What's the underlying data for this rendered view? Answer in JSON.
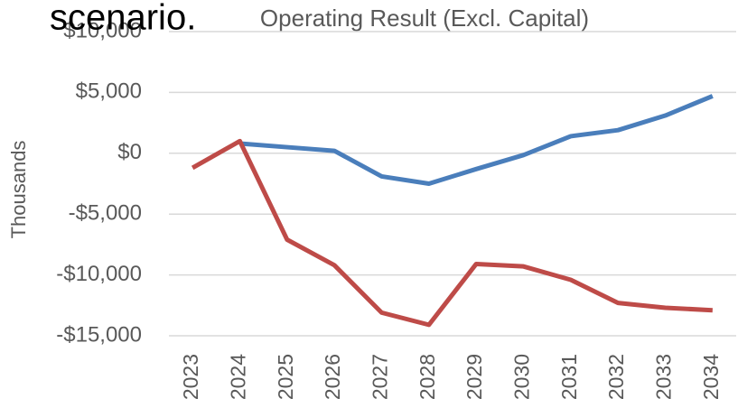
{
  "chart_data": {
    "type": "line",
    "title": "Operating Result (Excl. Capital)",
    "annotation": "scenario.",
    "y_label": "Thousands",
    "categories": [
      "2023",
      "2024",
      "2025",
      "2026",
      "2027",
      "2028",
      "2029",
      "2030",
      "2031",
      "2032",
      "2033",
      "2034"
    ],
    "series": [
      {
        "color": "#4a7ebb",
        "values": [
          null,
          800,
          500,
          200,
          -1900,
          -2500,
          -1300,
          -150,
          1400,
          1900,
          3100,
          4700
        ]
      },
      {
        "color": "#be4b48",
        "values": [
          -1200,
          1000,
          -7100,
          -9200,
          -13100,
          -14100,
          -9100,
          -9300,
          -10400,
          -12300,
          -12700,
          -12900
        ]
      }
    ],
    "ylim": [
      -15000,
      10000
    ],
    "yticks": [
      {
        "value": -15000,
        "label": "-$15,000"
      },
      {
        "value": -10000,
        "label": "-$10,000"
      },
      {
        "value": -5000,
        "label": "-$5,000"
      },
      {
        "value": 0,
        "label": "$0"
      },
      {
        "value": 5000,
        "label": "$5,000"
      },
      {
        "value": 10000,
        "label": "$10,000"
      }
    ],
    "grid": true
  }
}
